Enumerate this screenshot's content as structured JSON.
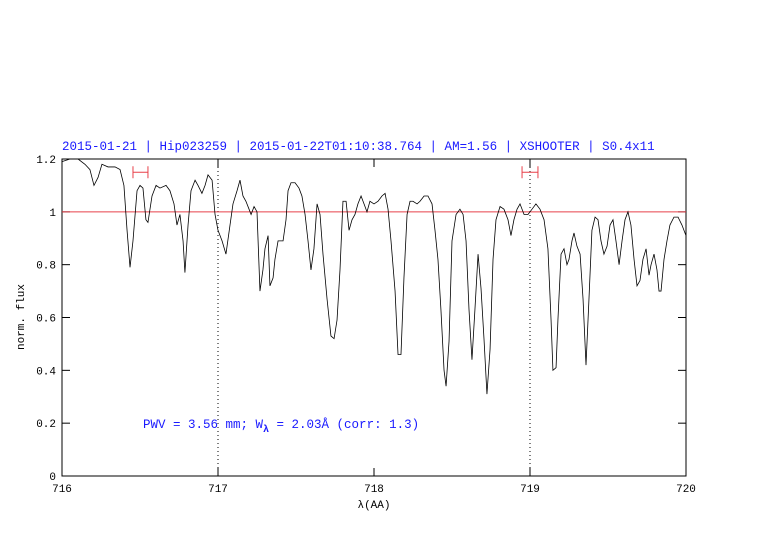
{
  "chart_data": {
    "type": "line",
    "title": "2015-01-21 | Hip023259 | 2015-01-22T01:10:38.764 | AM=1.56 | XSHOOTER | S0.4x11",
    "xlabel": "λ(AA)",
    "ylabel": "norm. flux",
    "annotation": [
      "PWV = 3.56 mm; W",
      "λ",
      " = 2.03Å (corr: 1.3)"
    ],
    "xlim": [
      716,
      720
    ],
    "ylim": [
      0,
      1.2
    ],
    "xticks": [
      716,
      717,
      718,
      719,
      720
    ],
    "yticks": [
      0,
      0.2,
      0.4,
      0.6,
      0.8,
      1,
      1.2
    ],
    "hline": 1,
    "hline_color": "#e8404a",
    "vlines": [
      717,
      719
    ],
    "intervals": [
      {
        "x": [
          716.455,
          716.551
        ],
        "y": 1.15
      },
      {
        "x": [
          718.949,
          719.051
        ],
        "y": 1.15
      }
    ],
    "series": [
      {
        "color": "#000000",
        "x": [
          716.0,
          716.051,
          716.103,
          716.147,
          716.179,
          716.205,
          716.231,
          716.256,
          716.295,
          716.34,
          716.372,
          716.397,
          716.417,
          716.436,
          716.455,
          716.481,
          716.5,
          716.519,
          716.538,
          716.551,
          716.577,
          716.603,
          716.628,
          716.667,
          716.692,
          716.718,
          716.737,
          716.756,
          716.776,
          716.788,
          716.808,
          716.827,
          716.853,
          716.872,
          716.897,
          716.917,
          716.936,
          716.962,
          716.981,
          717.0,
          717.026,
          717.051,
          717.077,
          717.096,
          717.122,
          717.141,
          717.16,
          717.179,
          717.199,
          717.212,
          717.231,
          717.25,
          717.269,
          717.288,
          717.301,
          717.321,
          717.333,
          717.353,
          717.365,
          717.385,
          717.397,
          717.417,
          717.436,
          717.449,
          717.468,
          717.494,
          717.519,
          717.538,
          717.558,
          717.577,
          717.596,
          717.615,
          717.635,
          717.654,
          717.673,
          717.699,
          717.724,
          717.744,
          717.763,
          717.782,
          717.801,
          717.821,
          717.84,
          717.859,
          717.878,
          717.897,
          717.917,
          717.936,
          717.955,
          717.974,
          718.0,
          718.026,
          718.051,
          718.071,
          718.09,
          718.109,
          718.135,
          718.154,
          718.173,
          718.192,
          718.212,
          718.231,
          718.25,
          718.276,
          718.295,
          718.321,
          718.346,
          718.372,
          718.391,
          718.41,
          718.429,
          718.449,
          718.462,
          718.481,
          718.5,
          718.526,
          718.551,
          718.571,
          718.59,
          718.609,
          718.628,
          718.647,
          718.667,
          718.686,
          718.705,
          718.724,
          718.744,
          718.763,
          718.782,
          718.808,
          718.833,
          718.859,
          718.878,
          718.897,
          718.917,
          718.936,
          718.962,
          718.987,
          719.013,
          719.038,
          719.064,
          719.09,
          719.115,
          719.135,
          719.147,
          719.167,
          719.179,
          719.199,
          719.218,
          719.237,
          719.25,
          719.269,
          719.282,
          719.301,
          719.321,
          719.34,
          719.359,
          719.378,
          719.397,
          719.417,
          719.436,
          719.455,
          719.474,
          719.494,
          719.513,
          719.532,
          719.551,
          719.571,
          719.59,
          719.609,
          719.628,
          719.647,
          719.667,
          719.686,
          719.705,
          719.724,
          719.744,
          719.763,
          719.776,
          719.795,
          719.814,
          719.827,
          719.84,
          719.859,
          719.878,
          719.897,
          719.923,
          719.949,
          719.974,
          720.0
        ],
        "values": [
          1.19,
          1.2,
          1.2,
          1.18,
          1.16,
          1.1,
          1.13,
          1.18,
          1.17,
          1.17,
          1.16,
          1.1,
          0.93,
          0.79,
          0.89,
          1.08,
          1.1,
          1.09,
          0.97,
          0.96,
          1.06,
          1.1,
          1.09,
          1.1,
          1.08,
          1.03,
          0.95,
          0.99,
          0.89,
          0.77,
          0.95,
          1.08,
          1.12,
          1.1,
          1.07,
          1.1,
          1.14,
          1.12,
          0.99,
          0.93,
          0.89,
          0.84,
          0.95,
          1.03,
          1.08,
          1.12,
          1.06,
          1.04,
          1.01,
          0.99,
          1.02,
          1.0,
          0.7,
          0.78,
          0.86,
          0.91,
          0.72,
          0.75,
          0.82,
          0.89,
          0.89,
          0.89,
          0.97,
          1.08,
          1.11,
          1.11,
          1.09,
          1.06,
          0.99,
          0.89,
          0.78,
          0.86,
          1.03,
          0.99,
          0.84,
          0.67,
          0.53,
          0.52,
          0.59,
          0.78,
          1.04,
          1.04,
          0.93,
          0.97,
          0.99,
          1.03,
          1.06,
          1.03,
          1.0,
          1.04,
          1.03,
          1.04,
          1.06,
          1.07,
          1.01,
          0.89,
          0.7,
          0.46,
          0.46,
          0.75,
          0.99,
          1.04,
          1.04,
          1.03,
          1.04,
          1.06,
          1.06,
          1.03,
          0.93,
          0.82,
          0.63,
          0.4,
          0.34,
          0.51,
          0.89,
          0.99,
          1.01,
          0.99,
          0.89,
          0.63,
          0.44,
          0.63,
          0.84,
          0.71,
          0.52,
          0.31,
          0.48,
          0.82,
          0.97,
          1.02,
          1.01,
          0.97,
          0.91,
          0.97,
          1.01,
          1.03,
          0.99,
          0.99,
          1.01,
          1.03,
          1.01,
          0.97,
          0.86,
          0.59,
          0.4,
          0.41,
          0.59,
          0.84,
          0.86,
          0.8,
          0.82,
          0.89,
          0.92,
          0.87,
          0.84,
          0.67,
          0.42,
          0.67,
          0.93,
          0.98,
          0.97,
          0.89,
          0.84,
          0.87,
          0.95,
          0.97,
          0.89,
          0.8,
          0.89,
          0.97,
          1.0,
          0.95,
          0.82,
          0.72,
          0.74,
          0.82,
          0.86,
          0.76,
          0.8,
          0.84,
          0.78,
          0.7,
          0.7,
          0.82,
          0.89,
          0.95,
          0.98,
          0.98,
          0.95,
          0.91
        ]
      }
    ]
  }
}
